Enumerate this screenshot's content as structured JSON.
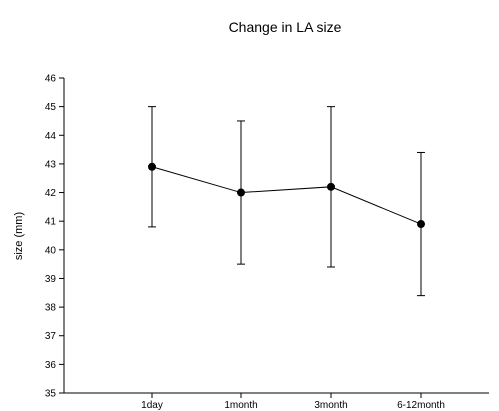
{
  "chart_data": {
    "type": "line",
    "title": "Change in LA size",
    "xlabel": "",
    "ylabel": "size (mm)",
    "categories": [
      "1day",
      "1month",
      "3month",
      "6-12month"
    ],
    "series": [
      {
        "values": [
          42.9,
          42.0,
          42.2,
          40.9
        ],
        "error_upper": [
          45.0,
          44.5,
          45.0,
          43.4
        ],
        "error_lower": [
          40.8,
          39.5,
          39.4,
          38.4
        ]
      }
    ],
    "ylim": [
      35,
      46
    ],
    "yticks": [
      35,
      36,
      37,
      38,
      39,
      40,
      41,
      42,
      43,
      44,
      45,
      46
    ],
    "grid": false,
    "legend": "none",
    "colors": {
      "line": "#000000",
      "marker": "#000000",
      "axis": "#000000"
    }
  }
}
